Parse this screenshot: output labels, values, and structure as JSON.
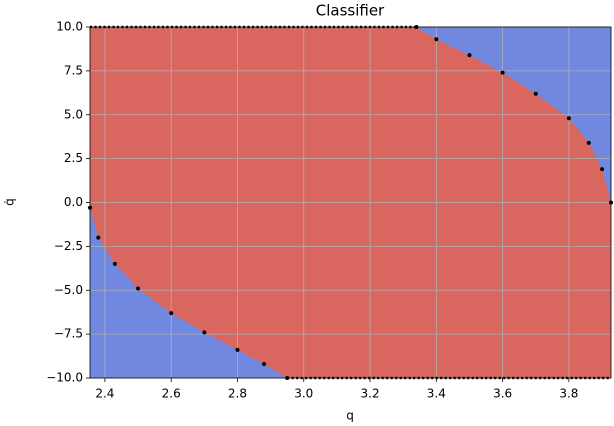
{
  "chart_data": {
    "type": "scatter",
    "title": "Classifier",
    "x_label": "q",
    "y_label": "q̇",
    "xlim": [
      2.355,
      3.927
    ],
    "ylim": [
      -10,
      10
    ],
    "xticks": [
      2.4,
      2.6,
      2.8,
      {
        "value": 3,
        "label": "3.0"
      },
      3.2,
      3.4,
      3.6,
      3.8
    ],
    "yticks": [
      {
        "value": -10,
        "label": "−10.0"
      },
      {
        "value": -7.5,
        "label": "−7.5"
      },
      {
        "value": -5,
        "label": "−5.0"
      },
      {
        "value": -2.5,
        "label": "−2.5"
      },
      {
        "value": 0,
        "label": "0.0"
      },
      2.5,
      {
        "value": 5,
        "label": "5.0"
      },
      7.5,
      {
        "value": 10,
        "label": "10.0"
      }
    ],
    "grid": true,
    "inside_color": "#d9675f",
    "outside_color": "#7188e0",
    "series": [
      {
        "color": "#000000",
        "x": [
          3.34,
          3.4,
          3.5,
          3.6,
          3.7,
          3.8,
          3.86,
          3.9,
          3.927
        ],
        "values": [
          10,
          9.3,
          8.4,
          7.4,
          6.2,
          4.8,
          3.4,
          1.9,
          0
        ]
      },
      {
        "color": "#000000",
        "x": [
          2.355,
          2.38,
          2.43,
          2.5,
          2.6,
          2.7,
          2.8,
          2.88,
          2.95
        ],
        "values": [
          -0.3,
          -2,
          -3.5,
          -4.9,
          -6.3,
          -7.4,
          -8.4,
          -9.2,
          -10
        ]
      }
    ]
  }
}
